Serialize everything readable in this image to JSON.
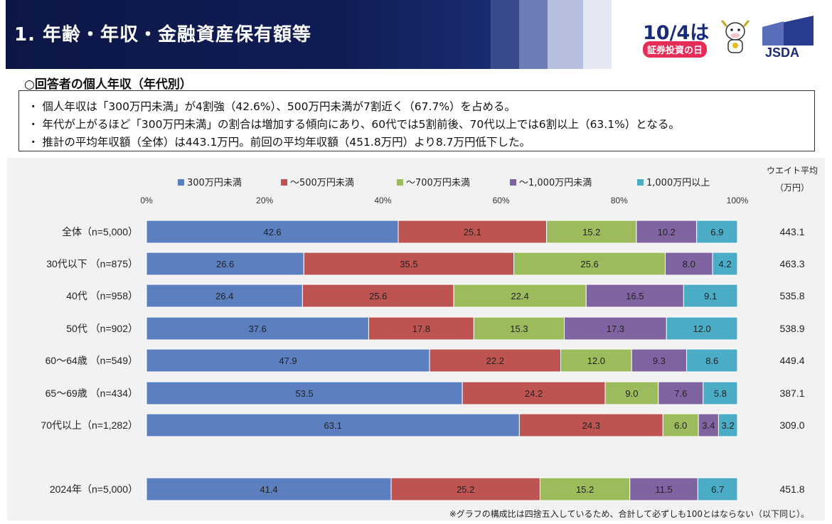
{
  "header": {
    "title": "1. 年齢・年収・金融資産保有額等",
    "campaign_date": "10/4は",
    "campaign_sub": "証券投資の日",
    "org_logo": "JSDA"
  },
  "section_title": "○回答者の個人年収（年代別）",
  "summary": [
    "・ 個人年収は「300万円未満」が4割強（42.6%）、500万円未満が7割近く（67.7%）を占める。",
    "・ 年代が上がるほど「300万円未満」の割合は増加する傾向にあり、60代では5割前後、70代以上では6割以上（63.1%）となる。",
    "・ 推計の平均年収額（全体）は443.1万円。前回の平均年収額（451.8万円）より8.7万円低下した。"
  ],
  "footnote": "※グラフの構成比は四捨五入しているため、合計して必ずしも100とはならない（以下同じ）。",
  "colors": {
    "header_band": "#101d55",
    "series": [
      "#5b7fbf",
      "#bd5451",
      "#9cbb5c",
      "#8064a2",
      "#4bacc6"
    ]
  },
  "chart_data": {
    "type": "bar",
    "orientation": "horizontal",
    "stacked": true,
    "x_ticks": [
      "0%",
      "20%",
      "40%",
      "60%",
      "80%",
      "100%"
    ],
    "xlim": [
      0,
      100
    ],
    "legend_position": "top",
    "right_column_title": [
      "ウエイト平均",
      "（万円）"
    ],
    "categories": [
      "全体（n=5,000）",
      "30代以下 （n=875）",
      "40代 （n=958）",
      "50代 （n=902）",
      "60～64歳 （n=549）",
      "65～69歳 （n=434）",
      "70代以上（n=1,282）",
      "2024年（n=5,000）"
    ],
    "gap_before_index": 7,
    "series": [
      {
        "name": "300万円未満",
        "values": [
          42.6,
          26.6,
          26.4,
          37.6,
          47.9,
          53.5,
          63.1,
          41.4
        ]
      },
      {
        "name": "～500万円未満",
        "values": [
          25.1,
          35.5,
          25.6,
          17.8,
          22.2,
          24.2,
          24.3,
          25.2
        ]
      },
      {
        "name": "～700万円未満",
        "values": [
          15.2,
          25.6,
          22.4,
          15.3,
          12.0,
          9.0,
          6.0,
          15.2
        ]
      },
      {
        "name": "～1,000万円未満",
        "values": [
          10.2,
          8.0,
          16.5,
          17.3,
          9.3,
          7.6,
          3.4,
          11.5
        ]
      },
      {
        "name": "1,000万円以上",
        "values": [
          6.9,
          4.2,
          9.1,
          12.0,
          8.6,
          5.8,
          3.2,
          6.7
        ]
      }
    ],
    "weighted_average": [
      "443.1",
      "463.3",
      "535.8",
      "538.9",
      "449.4",
      "387.1",
      "309.0",
      "451.8"
    ]
  }
}
